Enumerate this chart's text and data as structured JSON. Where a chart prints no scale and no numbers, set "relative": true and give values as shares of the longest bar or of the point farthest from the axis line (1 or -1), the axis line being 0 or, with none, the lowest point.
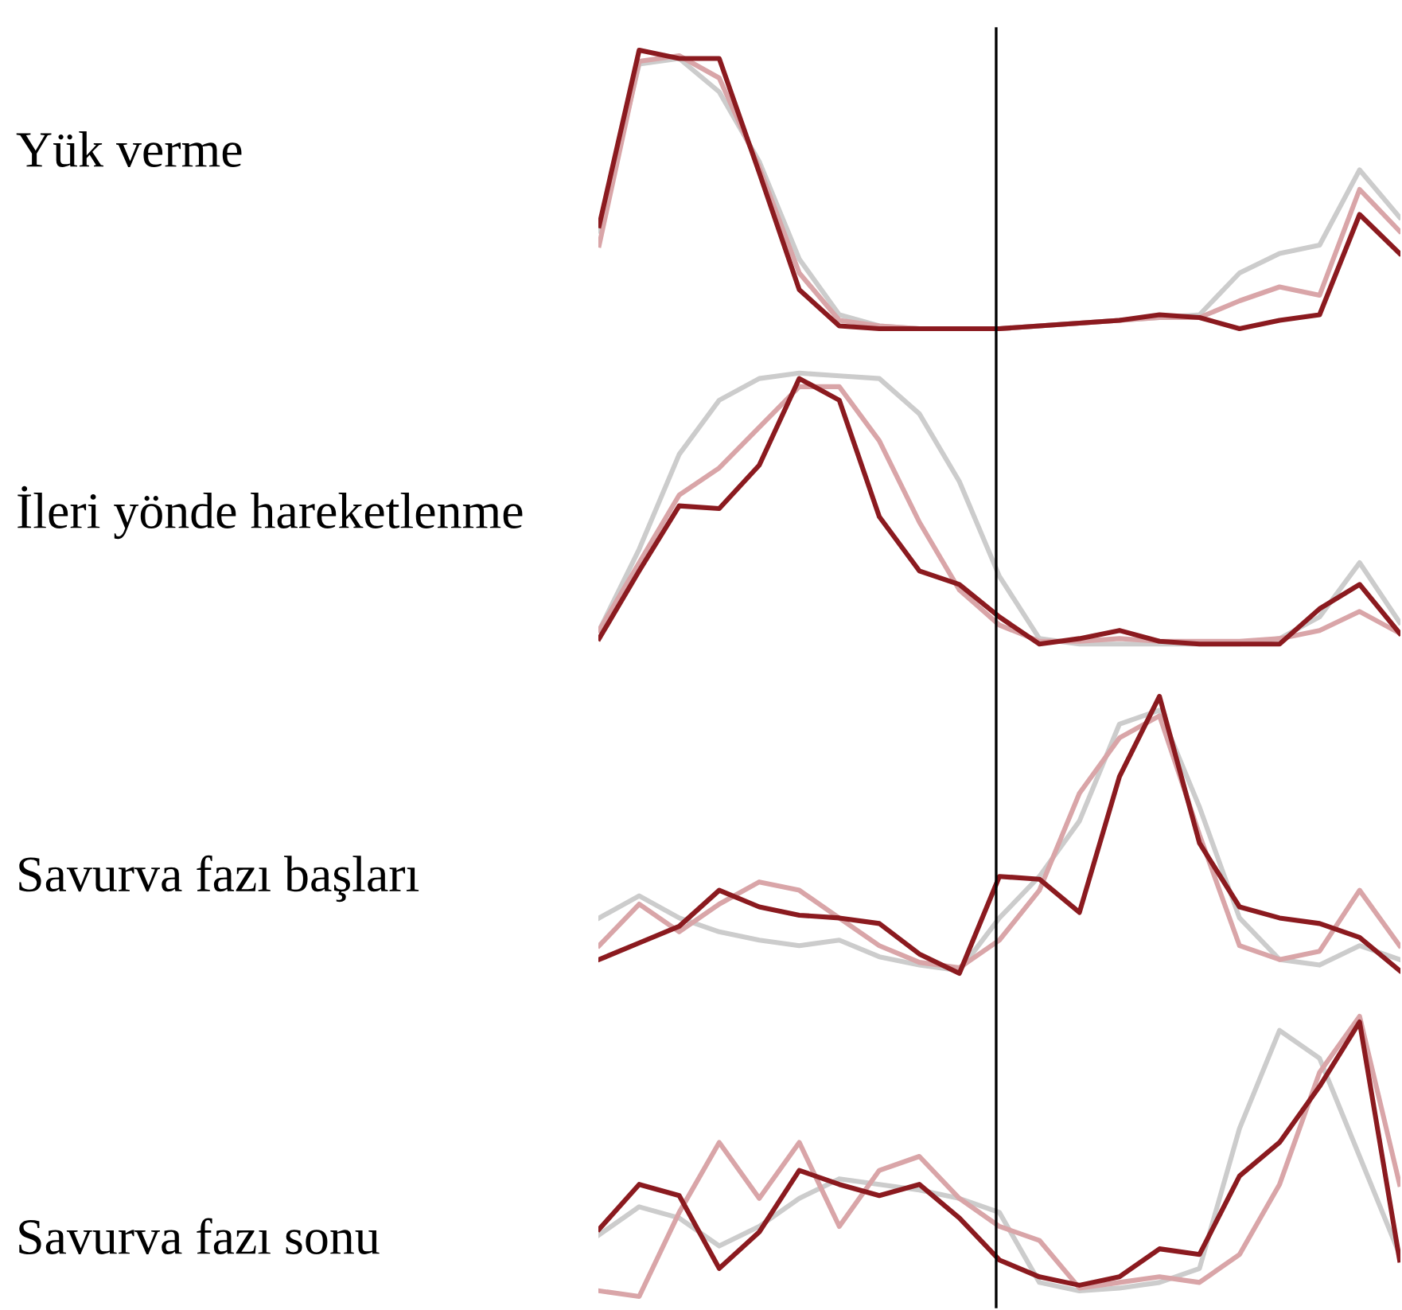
{
  "chart_data": [
    {
      "type": "line",
      "relative": true,
      "ylabel": "Yük verme",
      "categories": [
        null,
        null,
        null,
        null,
        null,
        null,
        null,
        null,
        null,
        null,
        null,
        null,
        null,
        null,
        null,
        null,
        null,
        null,
        null,
        null,
        null
      ],
      "series": [
        {
          "color": "#cccccc",
          "values": [
            0.35,
            0.95,
            0.97,
            0.85,
            0.6,
            0.25,
            0.05,
            0.01,
            0,
            0,
            0,
            0.01,
            0.02,
            0.03,
            0.04,
            0.05,
            0.2,
            0.27,
            0.3,
            0.57,
            0.4
          ]
        },
        {
          "color": "#d9a5a8",
          "values": [
            0.3,
            0.96,
            0.98,
            0.9,
            0.58,
            0.2,
            0.03,
            0.01,
            0,
            0,
            0,
            0.01,
            0.02,
            0.03,
            0.04,
            0.04,
            0.1,
            0.15,
            0.12,
            0.5,
            0.35
          ]
        },
        {
          "color": "#8b1a1f",
          "values": [
            0.37,
            1.0,
            0.97,
            0.97,
            0.56,
            0.14,
            0.01,
            0,
            0,
            0,
            0,
            0.01,
            0.02,
            0.03,
            0.05,
            0.04,
            0,
            0.03,
            0.05,
            0.41,
            0.27
          ]
        }
      ]
    },
    {
      "type": "line",
      "relative": true,
      "ylabel": "İleri yönde hareketlenme",
      "categories": [
        null,
        null,
        null,
        null,
        null,
        null,
        null,
        null,
        null,
        null,
        null,
        null,
        null,
        null,
        null,
        null,
        null,
        null,
        null,
        null,
        null
      ],
      "series": [
        {
          "color": "#cccccc",
          "values": [
            0.05,
            0.35,
            0.7,
            0.9,
            0.98,
            1.0,
            0.99,
            0.98,
            0.85,
            0.6,
            0.25,
            0.02,
            0,
            0,
            0,
            0,
            0,
            0.02,
            0.1,
            0.3,
            0.08
          ]
        },
        {
          "color": "#d9a5a8",
          "values": [
            0.05,
            0.3,
            0.55,
            0.65,
            0.8,
            0.95,
            0.95,
            0.75,
            0.45,
            0.2,
            0.07,
            0.01,
            0.01,
            0.02,
            0.01,
            0.01,
            0.01,
            0.02,
            0.05,
            0.12,
            0.04
          ]
        },
        {
          "color": "#8b1a1f",
          "values": [
            0.02,
            0.27,
            0.51,
            0.5,
            0.66,
            0.98,
            0.9,
            0.47,
            0.27,
            0.22,
            0.1,
            0,
            0.02,
            0.05,
            0.01,
            0,
            0,
            0,
            0.13,
            0.22,
            0.04
          ]
        }
      ]
    },
    {
      "type": "line",
      "relative": true,
      "ylabel": "Savurva fazı başları",
      "categories": [
        null,
        null,
        null,
        null,
        null,
        null,
        null,
        null,
        null,
        null,
        null,
        null,
        null,
        null,
        null,
        null,
        null,
        null,
        null,
        null,
        null
      ],
      "series": [
        {
          "color": "#cccccc",
          "values": [
            0.2,
            0.28,
            0.2,
            0.15,
            0.12,
            0.1,
            0.12,
            0.06,
            0.03,
            0.01,
            0.2,
            0.35,
            0.55,
            0.9,
            0.95,
            0.6,
            0.2,
            0.05,
            0.03,
            0.1,
            0.05
          ]
        },
        {
          "color": "#d9a5a8",
          "values": [
            0.1,
            0.25,
            0.15,
            0.25,
            0.33,
            0.3,
            0.2,
            0.1,
            0.04,
            0.02,
            0.12,
            0.3,
            0.65,
            0.85,
            0.93,
            0.5,
            0.1,
            0.05,
            0.08,
            0.3,
            0.1
          ]
        },
        {
          "color": "#8b1a1f",
          "values": [
            0.05,
            0.11,
            0.17,
            0.3,
            0.24,
            0.21,
            0.2,
            0.18,
            0.07,
            0,
            0.35,
            0.34,
            0.22,
            0.71,
            1.0,
            0.47,
            0.24,
            0.2,
            0.18,
            0.13,
            0.01
          ]
        }
      ]
    },
    {
      "type": "line",
      "relative": true,
      "ylabel": "Savurva fazı sonu",
      "categories": [
        null,
        null,
        null,
        null,
        null,
        null,
        null,
        null,
        null,
        null,
        null,
        null,
        null,
        null,
        null,
        null,
        null,
        null,
        null,
        null,
        null
      ],
      "series": [
        {
          "color": "#cccccc",
          "values": [
            0.22,
            0.32,
            0.28,
            0.18,
            0.25,
            0.35,
            0.42,
            0.4,
            0.38,
            0.35,
            0.3,
            0.05,
            0.02,
            0.03,
            0.05,
            0.1,
            0.6,
            0.95,
            0.85,
            0.5,
            0.15
          ]
        },
        {
          "color": "#d9a5a8",
          "values": [
            0.02,
            0,
            0.3,
            0.55,
            0.35,
            0.55,
            0.25,
            0.45,
            0.5,
            0.35,
            0.25,
            0.2,
            0.03,
            0.05,
            0.07,
            0.05,
            0.15,
            0.4,
            0.8,
            1.0,
            0.4
          ]
        },
        {
          "color": "#8b1a1f",
          "values": [
            0.24,
            0.4,
            0.36,
            0.1,
            0.23,
            0.45,
            0.4,
            0.36,
            0.4,
            0.28,
            0.13,
            0.07,
            0.04,
            0.07,
            0.17,
            0.15,
            0.43,
            0.55,
            0.75,
            0.98,
            0.13
          ]
        }
      ]
    }
  ]
}
